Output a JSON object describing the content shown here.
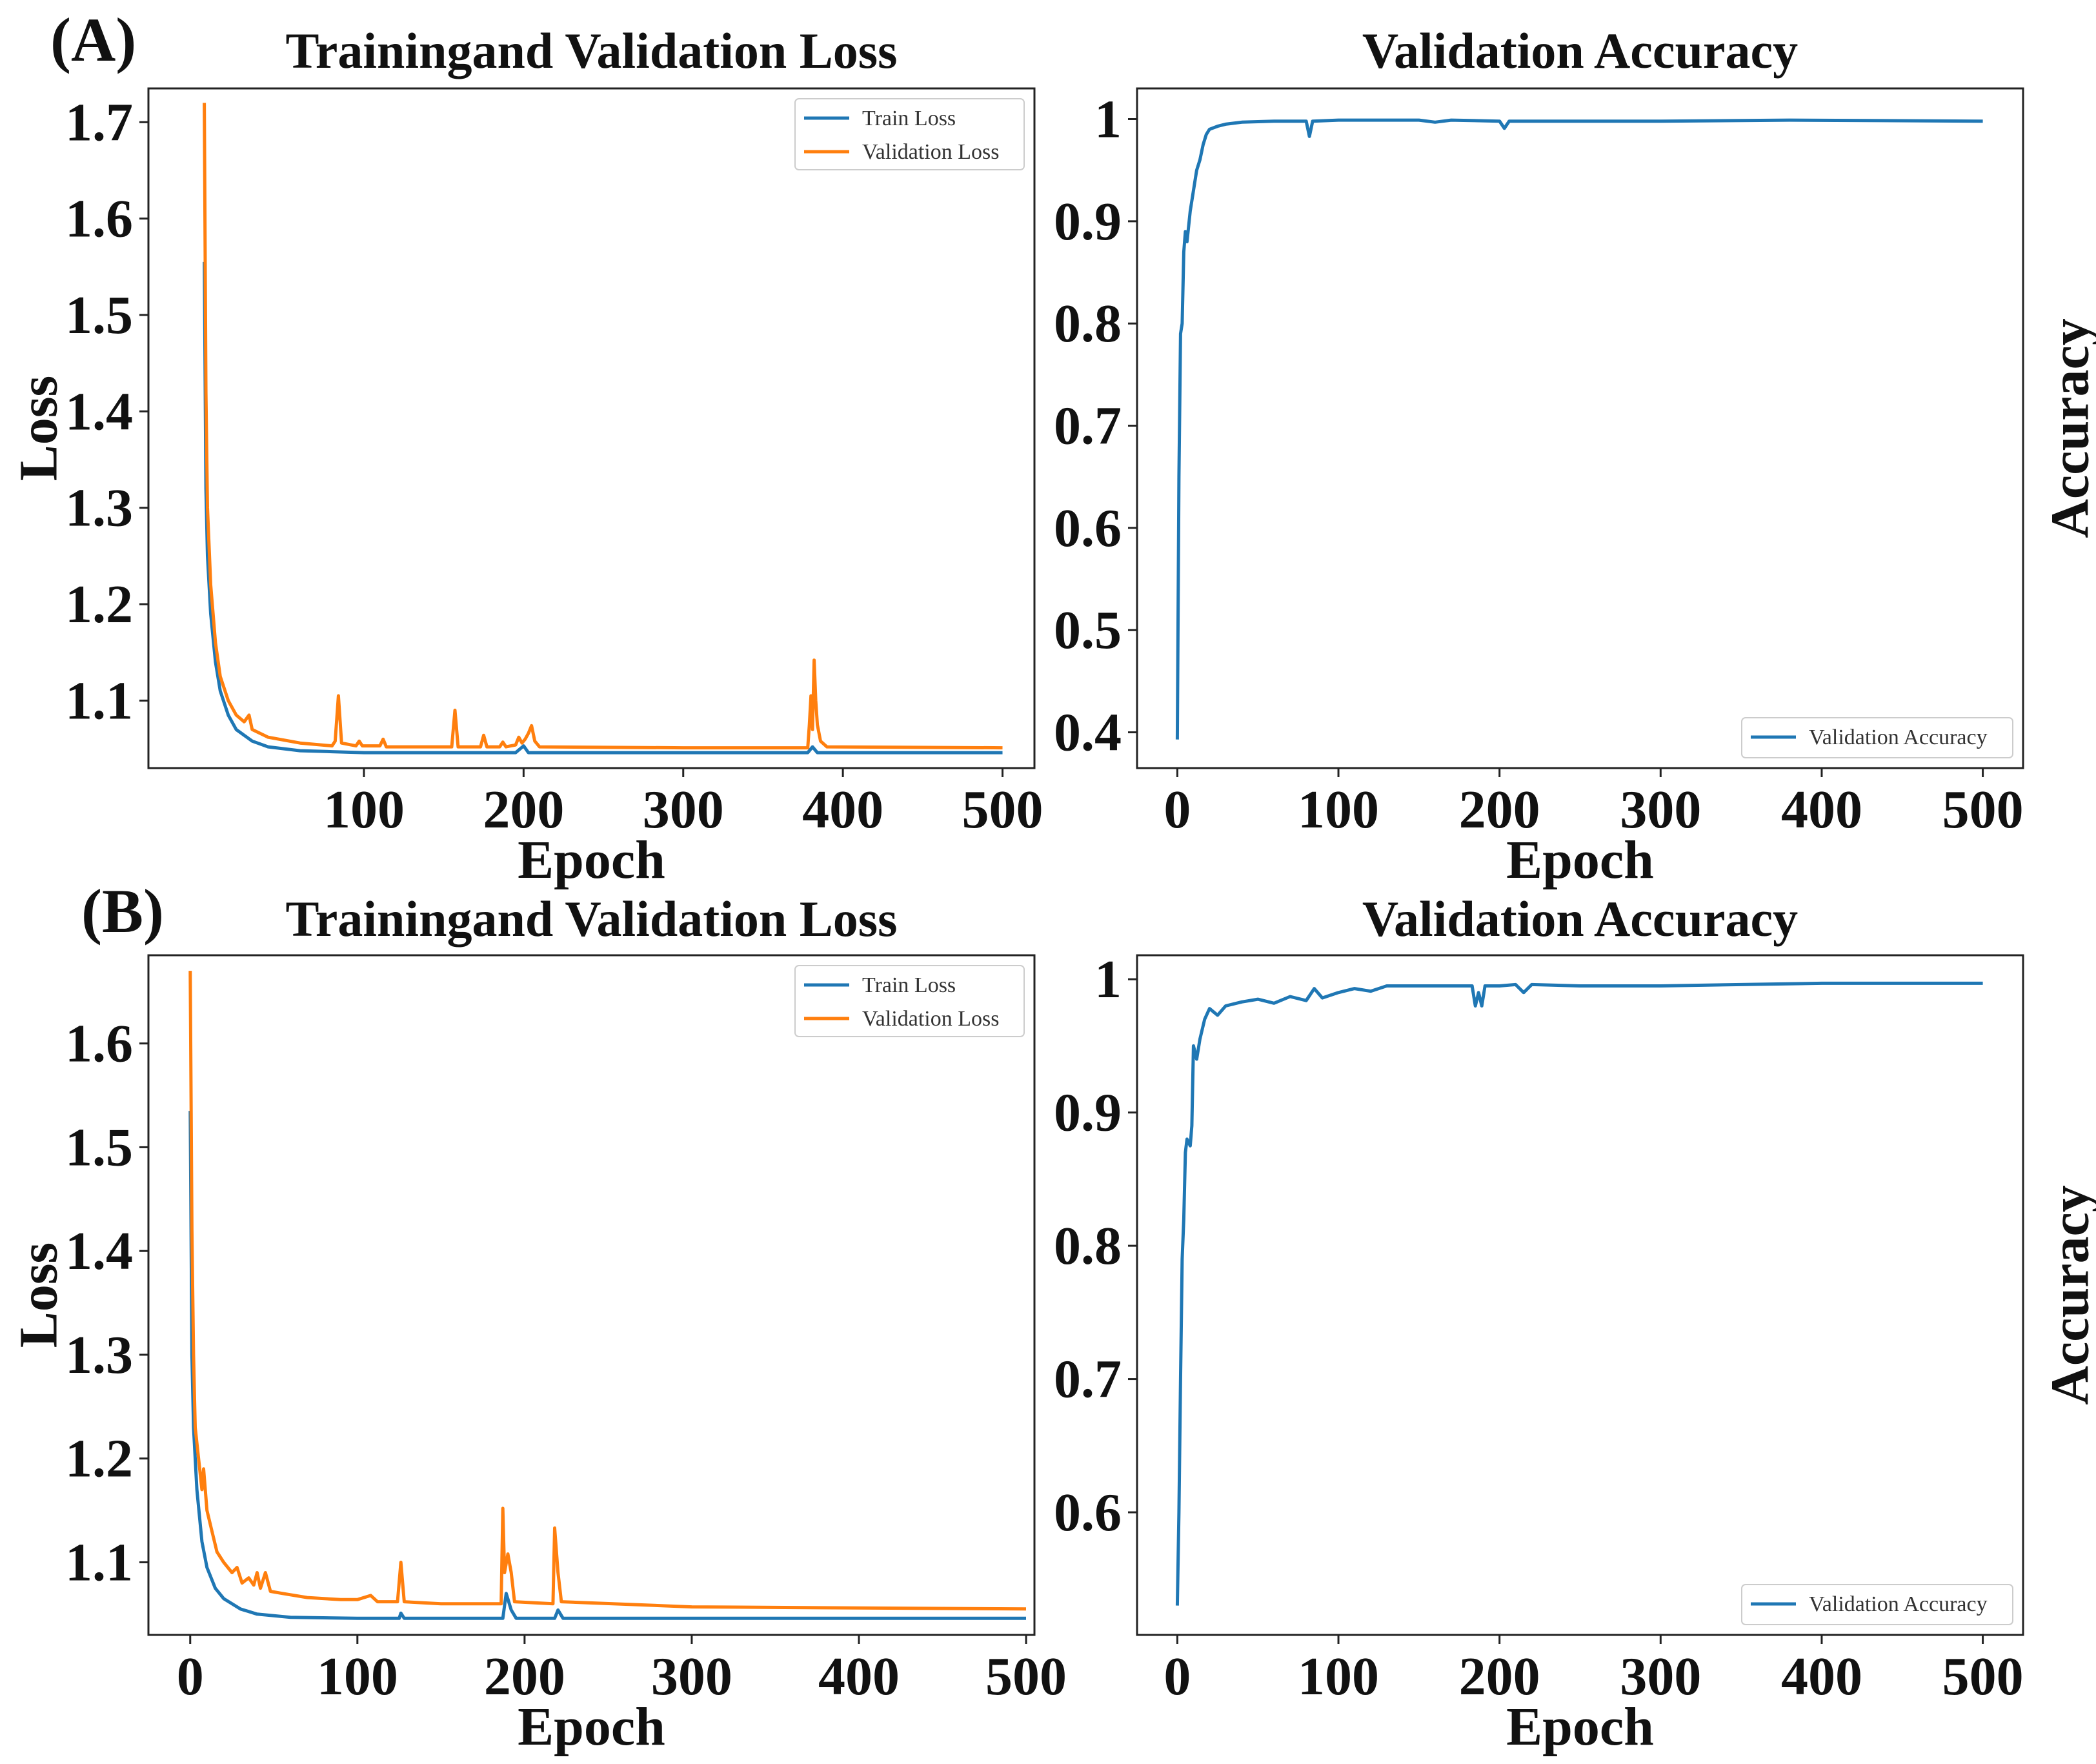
{
  "panels": {
    "a": {
      "label": "(A)"
    },
    "b": {
      "label": "(B)"
    }
  },
  "colors": {
    "train": "#1f77b4",
    "validation": "#ff7f0e",
    "accuracy": "#1f77b4",
    "frame": "#222222",
    "text": "#111111"
  },
  "chart_data": [
    {
      "id": "a-loss",
      "type": "line",
      "title": "Trainingand Validation Loss",
      "xlabel": "Epoch",
      "ylabel": "Loss",
      "xlim": [
        -35,
        520
      ],
      "ylim": [
        1.03,
        1.735
      ],
      "xticks": [
        100,
        200,
        300,
        400,
        500
      ],
      "yticks": [
        1.1,
        1.2,
        1.3,
        1.4,
        1.5,
        1.6,
        1.7
      ],
      "legend": "upper-right",
      "series": [
        {
          "name": "Train Loss",
          "color": "#1f77b4",
          "points": [
            [
              0,
              1.555
            ],
            [
              1,
              1.32
            ],
            [
              2,
              1.25
            ],
            [
              4,
              1.19
            ],
            [
              7,
              1.14
            ],
            [
              10,
              1.11
            ],
            [
              15,
              1.085
            ],
            [
              20,
              1.07
            ],
            [
              30,
              1.058
            ],
            [
              40,
              1.052
            ],
            [
              60,
              1.048
            ],
            [
              80,
              1.047
            ],
            [
              100,
              1.046
            ],
            [
              150,
              1.046
            ],
            [
              195,
              1.046
            ],
            [
              200,
              1.053
            ],
            [
              203,
              1.046
            ],
            [
              300,
              1.046
            ],
            [
              378,
              1.046
            ],
            [
              381,
              1.052
            ],
            [
              384,
              1.046
            ],
            [
              500,
              1.046
            ]
          ]
        },
        {
          "name": "Validation Loss",
          "color": "#ff7f0e",
          "points": [
            [
              0,
              1.72
            ],
            [
              1,
              1.42
            ],
            [
              2,
              1.3
            ],
            [
              4,
              1.22
            ],
            [
              7,
              1.16
            ],
            [
              10,
              1.125
            ],
            [
              15,
              1.1
            ],
            [
              20,
              1.085
            ],
            [
              25,
              1.078
            ],
            [
              28,
              1.085
            ],
            [
              30,
              1.07
            ],
            [
              40,
              1.062
            ],
            [
              60,
              1.056
            ],
            [
              80,
              1.053
            ],
            [
              82,
              1.058
            ],
            [
              84,
              1.105
            ],
            [
              86,
              1.056
            ],
            [
              95,
              1.053
            ],
            [
              97,
              1.058
            ],
            [
              99,
              1.053
            ],
            [
              110,
              1.053
            ],
            [
              112,
              1.06
            ],
            [
              114,
              1.052
            ],
            [
              155,
              1.052
            ],
            [
              157,
              1.09
            ],
            [
              159,
              1.052
            ],
            [
              173,
              1.052
            ],
            [
              175,
              1.064
            ],
            [
              177,
              1.052
            ],
            [
              185,
              1.052
            ],
            [
              187,
              1.057
            ],
            [
              189,
              1.052
            ],
            [
              195,
              1.054
            ],
            [
              197,
              1.062
            ],
            [
              199,
              1.056
            ],
            [
              201,
              1.06
            ],
            [
              203,
              1.066
            ],
            [
              205,
              1.074
            ],
            [
              207,
              1.058
            ],
            [
              210,
              1.052
            ],
            [
              300,
              1.051
            ],
            [
              378,
              1.051
            ],
            [
              379,
              1.075
            ],
            [
              380,
              1.105
            ],
            [
              381,
              1.07
            ],
            [
              382,
              1.142
            ],
            [
              383,
              1.1
            ],
            [
              384,
              1.075
            ],
            [
              386,
              1.058
            ],
            [
              390,
              1.052
            ],
            [
              500,
              1.051
            ]
          ]
        }
      ]
    },
    {
      "id": "a-accuracy",
      "type": "line",
      "title": "Validation Accuracy",
      "xlabel": "Epoch",
      "ylabel": "Accuracy",
      "xlim": [
        -25,
        525
      ],
      "ylim": [
        0.365,
        1.03
      ],
      "xticks": [
        0,
        100,
        200,
        300,
        400,
        500
      ],
      "yticks": [
        0.4,
        0.5,
        0.6,
        0.7,
        0.8,
        0.9,
        1.0
      ],
      "legend": "lower-right",
      "series": [
        {
          "name": "Validation Accuracy",
          "color": "#1f77b4",
          "points": [
            [
              0,
              0.393
            ],
            [
              1,
              0.65
            ],
            [
              2,
              0.79
            ],
            [
              3,
              0.8
            ],
            [
              4,
              0.87
            ],
            [
              5,
              0.89
            ],
            [
              6,
              0.88
            ],
            [
              8,
              0.91
            ],
            [
              10,
              0.93
            ],
            [
              12,
              0.95
            ],
            [
              14,
              0.96
            ],
            [
              16,
              0.975
            ],
            [
              18,
              0.985
            ],
            [
              20,
              0.99
            ],
            [
              25,
              0.993
            ],
            [
              30,
              0.995
            ],
            [
              40,
              0.997
            ],
            [
              60,
              0.998
            ],
            [
              80,
              0.998
            ],
            [
              82,
              0.983
            ],
            [
              84,
              0.998
            ],
            [
              100,
              0.999
            ],
            [
              150,
              0.999
            ],
            [
              160,
              0.997
            ],
            [
              170,
              0.999
            ],
            [
              200,
              0.998
            ],
            [
              203,
              0.991
            ],
            [
              206,
              0.998
            ],
            [
              300,
              0.998
            ],
            [
              380,
              0.999
            ],
            [
              500,
              0.998
            ]
          ]
        }
      ]
    },
    {
      "id": "b-loss",
      "type": "line",
      "title": "Trainingand Validation Loss",
      "xlabel": "Epoch",
      "ylabel": "Loss",
      "xlim": [
        -25,
        505
      ],
      "ylim": [
        1.03,
        1.685
      ],
      "xticks": [
        0,
        100,
        200,
        300,
        400,
        500
      ],
      "yticks": [
        1.1,
        1.2,
        1.3,
        1.4,
        1.5,
        1.6
      ],
      "legend": "upper-right",
      "series": [
        {
          "name": "Train Loss",
          "color": "#1f77b4",
          "points": [
            [
              0,
              1.535
            ],
            [
              1,
              1.3
            ],
            [
              2,
              1.23
            ],
            [
              4,
              1.17
            ],
            [
              7,
              1.12
            ],
            [
              10,
              1.095
            ],
            [
              15,
              1.075
            ],
            [
              20,
              1.065
            ],
            [
              30,
              1.055
            ],
            [
              40,
              1.05
            ],
            [
              60,
              1.047
            ],
            [
              100,
              1.046
            ],
            [
              125,
              1.046
            ],
            [
              126,
              1.051
            ],
            [
              128,
              1.046
            ],
            [
              187,
              1.046
            ],
            [
              189,
              1.07
            ],
            [
              192,
              1.054
            ],
            [
              195,
              1.046
            ],
            [
              218,
              1.046
            ],
            [
              220,
              1.054
            ],
            [
              223,
              1.046
            ],
            [
              500,
              1.046
            ]
          ]
        },
        {
          "name": "Validation Loss",
          "color": "#ff7f0e",
          "points": [
            [
              0,
              1.67
            ],
            [
              1,
              1.42
            ],
            [
              2,
              1.3
            ],
            [
              3,
              1.23
            ],
            [
              5,
              1.2
            ],
            [
              7,
              1.17
            ],
            [
              8,
              1.19
            ],
            [
              10,
              1.15
            ],
            [
              13,
              1.13
            ],
            [
              16,
              1.11
            ],
            [
              20,
              1.1
            ],
            [
              25,
              1.09
            ],
            [
              28,
              1.095
            ],
            [
              31,
              1.08
            ],
            [
              35,
              1.085
            ],
            [
              38,
              1.078
            ],
            [
              40,
              1.09
            ],
            [
              42,
              1.075
            ],
            [
              45,
              1.09
            ],
            [
              48,
              1.072
            ],
            [
              55,
              1.07
            ],
            [
              70,
              1.066
            ],
            [
              90,
              1.064
            ],
            [
              100,
              1.064
            ],
            [
              108,
              1.068
            ],
            [
              112,
              1.062
            ],
            [
              124,
              1.062
            ],
            [
              126,
              1.1
            ],
            [
              128,
              1.062
            ],
            [
              150,
              1.06
            ],
            [
              186,
              1.06
            ],
            [
              187,
              1.152
            ],
            [
              188,
              1.09
            ],
            [
              190,
              1.108
            ],
            [
              192,
              1.09
            ],
            [
              194,
              1.062
            ],
            [
              217,
              1.06
            ],
            [
              218,
              1.133
            ],
            [
              220,
              1.09
            ],
            [
              222,
              1.062
            ],
            [
              300,
              1.057
            ],
            [
              500,
              1.055
            ]
          ]
        }
      ]
    },
    {
      "id": "b-accuracy",
      "type": "line",
      "title": "Validation Accuracy",
      "xlabel": "Epoch",
      "ylabel": "Accuracy",
      "xlim": [
        -25,
        525
      ],
      "ylim": [
        0.508,
        1.018
      ],
      "xticks": [
        0,
        100,
        200,
        300,
        400,
        500
      ],
      "yticks": [
        0.6,
        0.7,
        0.8,
        0.9,
        1.0
      ],
      "legend": "lower-right",
      "series": [
        {
          "name": "Validation Accuracy",
          "color": "#1f77b4",
          "points": [
            [
              0,
              0.53
            ],
            [
              1,
              0.6
            ],
            [
              2,
              0.7
            ],
            [
              3,
              0.79
            ],
            [
              4,
              0.82
            ],
            [
              5,
              0.87
            ],
            [
              6,
              0.88
            ],
            [
              8,
              0.875
            ],
            [
              9,
              0.89
            ],
            [
              10,
              0.95
            ],
            [
              12,
              0.94
            ],
            [
              14,
              0.955
            ],
            [
              17,
              0.97
            ],
            [
              20,
              0.978
            ],
            [
              25,
              0.973
            ],
            [
              30,
              0.98
            ],
            [
              40,
              0.983
            ],
            [
              50,
              0.985
            ],
            [
              60,
              0.982
            ],
            [
              70,
              0.987
            ],
            [
              80,
              0.984
            ],
            [
              85,
              0.993
            ],
            [
              90,
              0.986
            ],
            [
              100,
              0.99
            ],
            [
              110,
              0.993
            ],
            [
              120,
              0.991
            ],
            [
              130,
              0.995
            ],
            [
              150,
              0.995
            ],
            [
              183,
              0.995
            ],
            [
              185,
              0.98
            ],
            [
              187,
              0.99
            ],
            [
              189,
              0.98
            ],
            [
              191,
              0.995
            ],
            [
              200,
              0.995
            ],
            [
              210,
              0.996
            ],
            [
              215,
              0.99
            ],
            [
              220,
              0.996
            ],
            [
              250,
              0.995
            ],
            [
              300,
              0.995
            ],
            [
              350,
              0.996
            ],
            [
              400,
              0.997
            ],
            [
              450,
              0.997
            ],
            [
              500,
              0.997
            ]
          ]
        }
      ]
    }
  ]
}
